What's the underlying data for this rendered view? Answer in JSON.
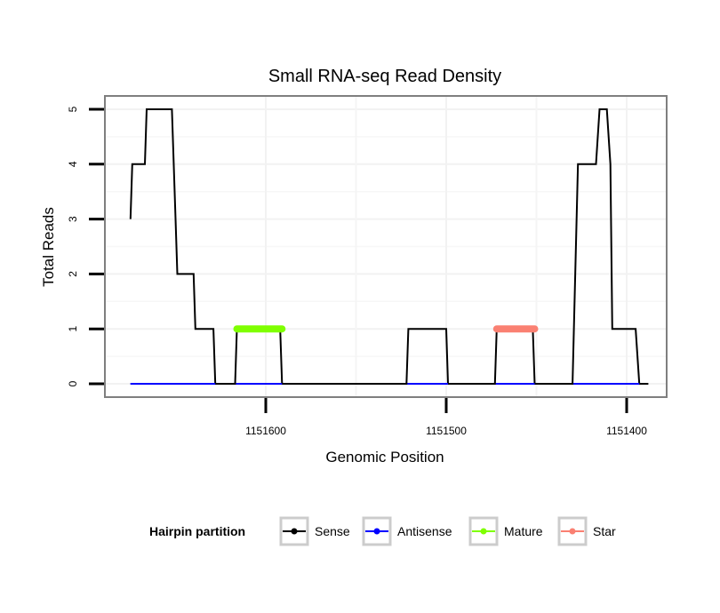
{
  "chart_data": {
    "type": "line",
    "title": "Small RNA-seq Read Density",
    "xlabel": "Genomic Position",
    "ylabel": "Total Reads",
    "xlim": [
      1151685,
      1151375
    ],
    "x_reversed": true,
    "ylim": [
      -0.25,
      5.25
    ],
    "x_ticks": [
      1151600,
      1151500,
      1151400
    ],
    "x_tick_labels": [
      "1151600",
      "1151500",
      "1151400"
    ],
    "y_ticks": [
      0,
      1,
      2,
      3,
      4,
      5
    ],
    "y_tick_labels": [
      "0",
      "1",
      "2",
      "3",
      "4",
      "5"
    ],
    "grid": true,
    "legend": {
      "title": "Hairpin partition",
      "position": "bottom",
      "entries": [
        {
          "name": "Sense",
          "color": "#000000"
        },
        {
          "name": "Antisense",
          "color": "#0000ff"
        },
        {
          "name": "Mature",
          "color": "#7fff00"
        },
        {
          "name": "Star",
          "color": "#fa8072"
        }
      ]
    },
    "series": [
      {
        "name": "Sense",
        "color": "#000000",
        "points": [
          [
            1151675,
            3
          ],
          [
            1151674,
            4
          ],
          [
            1151667,
            4
          ],
          [
            1151666,
            5
          ],
          [
            1151652,
            5
          ],
          [
            1151650,
            3
          ],
          [
            1151649,
            2
          ],
          [
            1151640,
            2
          ],
          [
            1151639,
            1
          ],
          [
            1151629,
            1
          ],
          [
            1151628,
            0
          ],
          [
            1151617,
            0
          ],
          [
            1151616,
            1
          ],
          [
            1151592,
            1
          ],
          [
            1151591,
            0
          ],
          [
            1151522,
            0
          ],
          [
            1151521,
            1
          ],
          [
            1151500,
            1
          ],
          [
            1151499,
            0
          ],
          [
            1151473,
            0
          ],
          [
            1151472,
            1
          ],
          [
            1151452,
            1
          ],
          [
            1151451,
            0
          ],
          [
            1151430,
            0
          ],
          [
            1151427,
            4
          ],
          [
            1151417,
            4
          ],
          [
            1151415,
            5
          ],
          [
            1151411,
            5
          ],
          [
            1151409,
            4
          ],
          [
            1151408,
            1
          ],
          [
            1151395,
            1
          ],
          [
            1151393,
            0
          ],
          [
            1151388,
            0
          ]
        ]
      },
      {
        "name": "Antisense",
        "color": "#0000ff",
        "points": [
          [
            1151675,
            0
          ],
          [
            1151393,
            0
          ]
        ]
      },
      {
        "name": "Mature",
        "color": "#7fff00",
        "points": [
          [
            1151616,
            1
          ],
          [
            1151591,
            1
          ]
        ]
      },
      {
        "name": "Star",
        "color": "#fa8072",
        "points": [
          [
            1151472,
            1
          ],
          [
            1151451,
            1
          ]
        ]
      }
    ]
  }
}
